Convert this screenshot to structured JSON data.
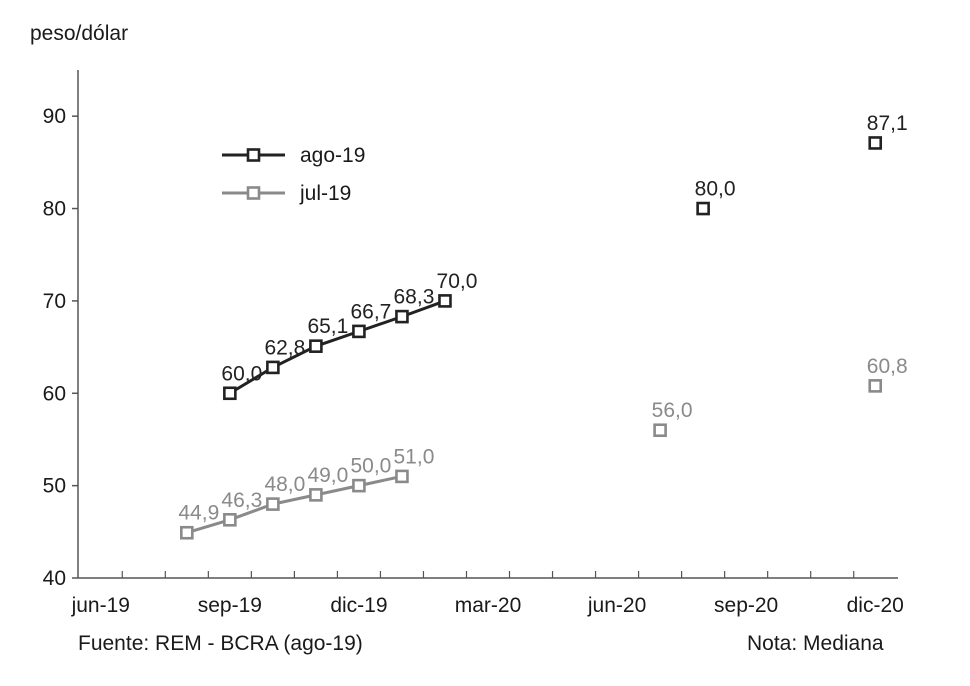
{
  "chart_data": {
    "type": "line",
    "ylabel": "peso/dólar",
    "ylim": [
      40,
      95
    ],
    "yticks": [
      40,
      50,
      60,
      70,
      80,
      90
    ],
    "x_months": [
      "jun-19",
      "jul-19",
      "ago-19",
      "sep-19",
      "oct-19",
      "nov-19",
      "dic-19",
      "ene-20",
      "feb-20",
      "mar-20",
      "abr-20",
      "may-20",
      "jun-20",
      "jul-20",
      "ago-20",
      "sep-20",
      "oct-20",
      "nov-20",
      "dic-20"
    ],
    "x_tick_labels": [
      "jun-19",
      "sep-19",
      "dic-19",
      "mar-20",
      "jun-20",
      "sep-20",
      "dic-20"
    ],
    "grid": false,
    "legend_position": "top-left",
    "series": [
      {
        "name": "ago-19",
        "color": "#222222",
        "line": [
          {
            "x": "sep-19",
            "y": 60.0,
            "label": "60,0"
          },
          {
            "x": "oct-19",
            "y": 62.8,
            "label": "62,8"
          },
          {
            "x": "nov-19",
            "y": 65.1,
            "label": "65,1"
          },
          {
            "x": "dic-19",
            "y": 66.7,
            "label": "66,7"
          },
          {
            "x": "ene-20",
            "y": 68.3,
            "label": "68,3"
          },
          {
            "x": "feb-20",
            "y": 70.0,
            "label": "70,0"
          }
        ],
        "points": [
          {
            "x": "ago-20",
            "y": 80.0,
            "label": "80,0"
          },
          {
            "x": "dic-20",
            "y": 87.1,
            "label": "87,1"
          }
        ]
      },
      {
        "name": "jul-19",
        "color": "#8a8a8a",
        "line": [
          {
            "x": "ago-19",
            "y": 44.9,
            "label": "44,9"
          },
          {
            "x": "sep-19",
            "y": 46.3,
            "label": "46,3"
          },
          {
            "x": "oct-19",
            "y": 48.0,
            "label": "48,0"
          },
          {
            "x": "nov-19",
            "y": 49.0,
            "label": "49,0"
          },
          {
            "x": "dic-19",
            "y": 50.0,
            "label": "50,0"
          },
          {
            "x": "ene-20",
            "y": 51.0,
            "label": "51,0"
          }
        ],
        "points": [
          {
            "x": "jul-20",
            "y": 56.0,
            "label": "56,0"
          },
          {
            "x": "dic-20",
            "y": 60.8,
            "label": "60,8"
          }
        ]
      }
    ]
  },
  "footer": {
    "source": "Fuente: REM - BCRA (ago-19)",
    "note": "Nota: Mediana"
  }
}
